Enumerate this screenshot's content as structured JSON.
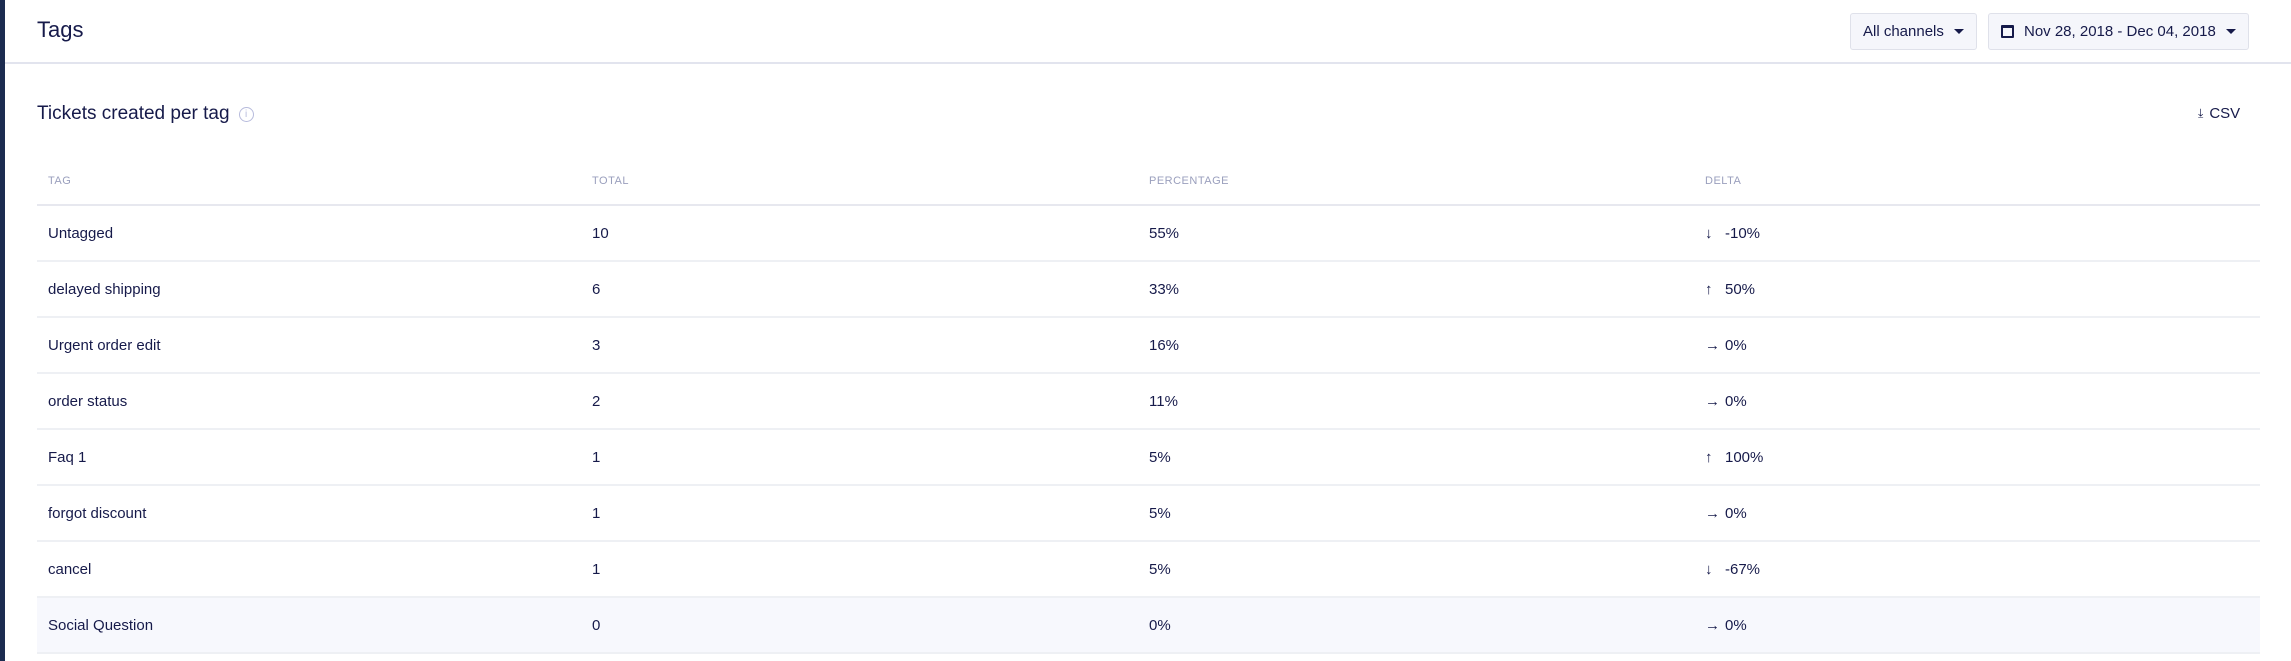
{
  "header": {
    "title": "Tags",
    "channel_filter": "All channels",
    "date_range": "Nov 28, 2018 - Dec 04, 2018"
  },
  "section": {
    "title": "Tickets created per tag",
    "csv_label": "CSV"
  },
  "table": {
    "columns": [
      "TAG",
      "TOTAL",
      "PERCENTAGE",
      "DELTA"
    ],
    "rows": [
      {
        "tag": "Untagged",
        "total": "10",
        "percentage": "55%",
        "delta": "-10%",
        "direction": "down"
      },
      {
        "tag": "delayed shipping",
        "total": "6",
        "percentage": "33%",
        "delta": "50%",
        "direction": "up"
      },
      {
        "tag": "Urgent order edit",
        "total": "3",
        "percentage": "16%",
        "delta": "0%",
        "direction": "flat"
      },
      {
        "tag": "order status",
        "total": "2",
        "percentage": "11%",
        "delta": "0%",
        "direction": "flat"
      },
      {
        "tag": "Faq 1",
        "total": "1",
        "percentage": "5%",
        "delta": "100%",
        "direction": "up"
      },
      {
        "tag": "forgot discount",
        "total": "1",
        "percentage": "5%",
        "delta": "0%",
        "direction": "flat"
      },
      {
        "tag": "cancel",
        "total": "1",
        "percentage": "5%",
        "delta": "-67%",
        "direction": "down"
      },
      {
        "tag": "Social Question",
        "total": "0",
        "percentage": "0%",
        "delta": "0%",
        "direction": "flat"
      }
    ]
  }
}
